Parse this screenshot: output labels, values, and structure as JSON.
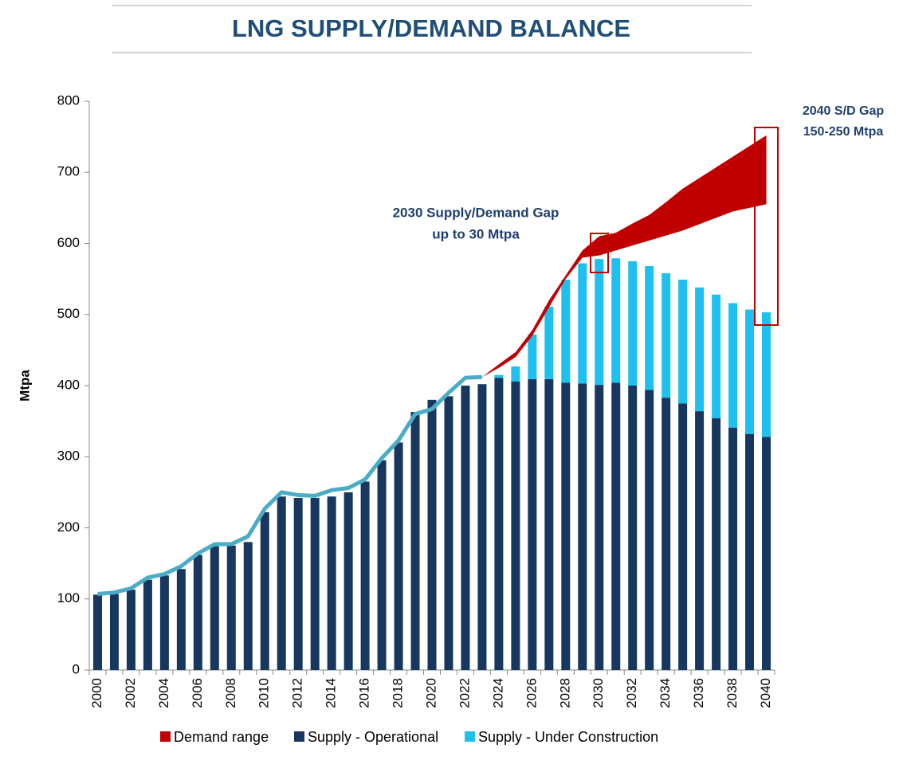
{
  "chart_data": {
    "type": "bar",
    "title": "LNG SUPPLY/DEMAND BALANCE",
    "y_label": "Mtpa",
    "categories": [
      "2000",
      null,
      "2002",
      null,
      "2004",
      null,
      "2006",
      null,
      "2008",
      null,
      "2010",
      null,
      "2012",
      null,
      "2014",
      null,
      "2016",
      null,
      "2018",
      null,
      "2020",
      null,
      "2022",
      null,
      "2024",
      null,
      "2026",
      null,
      "2028",
      null,
      "2030",
      null,
      "2032",
      null,
      "2034",
      null,
      "2036",
      null,
      "2038",
      null,
      "2040"
    ],
    "ylim": [
      0,
      800
    ],
    "yticks": [
      0,
      100,
      200,
      300,
      400,
      500,
      600,
      700,
      800
    ],
    "series": [
      {
        "name": "Supply - Operational",
        "color": "#17375e",
        "values": [
          106,
          107,
          113,
          127,
          133,
          142,
          162,
          174,
          175,
          180,
          222,
          244,
          242,
          242,
          244,
          250,
          265,
          295,
          320,
          363,
          380,
          385,
          400,
          402,
          411,
          406,
          409,
          409,
          404,
          403,
          401,
          404,
          400,
          394,
          383,
          375,
          364,
          354,
          341,
          332,
          328
        ]
      },
      {
        "name": "Supply - Under Construction",
        "color": "#1ec0f0",
        "values": [
          null,
          null,
          null,
          null,
          null,
          null,
          null,
          null,
          null,
          null,
          null,
          null,
          null,
          null,
          null,
          null,
          null,
          null,
          null,
          null,
          null,
          null,
          null,
          null,
          4,
          21,
          63,
          102,
          145,
          169,
          177,
          175,
          175,
          174,
          175,
          174,
          174,
          174,
          175,
          175,
          175
        ]
      }
    ],
    "line": {
      "color": "#4bacc6",
      "values": [
        107,
        109,
        115,
        130,
        135,
        146,
        164,
        177,
        177,
        188,
        227,
        250,
        246,
        245,
        253,
        256,
        268,
        298,
        323,
        360,
        367,
        390,
        411,
        412,
        null,
        null,
        null,
        null,
        null,
        null,
        null,
        null,
        null,
        null,
        null,
        null,
        null,
        null,
        null,
        null,
        null
      ]
    },
    "demand_range": {
      "name": "Demand range",
      "color": "#c00000",
      "low": [
        null,
        null,
        null,
        null,
        null,
        null,
        null,
        null,
        null,
        null,
        null,
        null,
        null,
        null,
        null,
        null,
        null,
        null,
        null,
        null,
        null,
        null,
        null,
        412,
        425,
        440,
        470,
        510,
        550,
        580,
        583,
        590,
        597,
        604,
        611,
        618,
        627,
        636,
        645,
        650,
        655
      ],
      "high": [
        null,
        null,
        null,
        null,
        null,
        null,
        null,
        null,
        null,
        null,
        null,
        null,
        null,
        null,
        null,
        null,
        null,
        null,
        null,
        null,
        null,
        null,
        null,
        412,
        430,
        447,
        478,
        520,
        555,
        590,
        610,
        615,
        628,
        640,
        658,
        677,
        692,
        707,
        722,
        737,
        752
      ]
    },
    "annotations": [
      {
        "lines": [
          "2030 Supply/Demand Gap",
          "up to 30 Mtpa"
        ]
      },
      {
        "lines": [
          "2040 S/D Gap",
          "150-250 Mtpa"
        ]
      }
    ]
  }
}
